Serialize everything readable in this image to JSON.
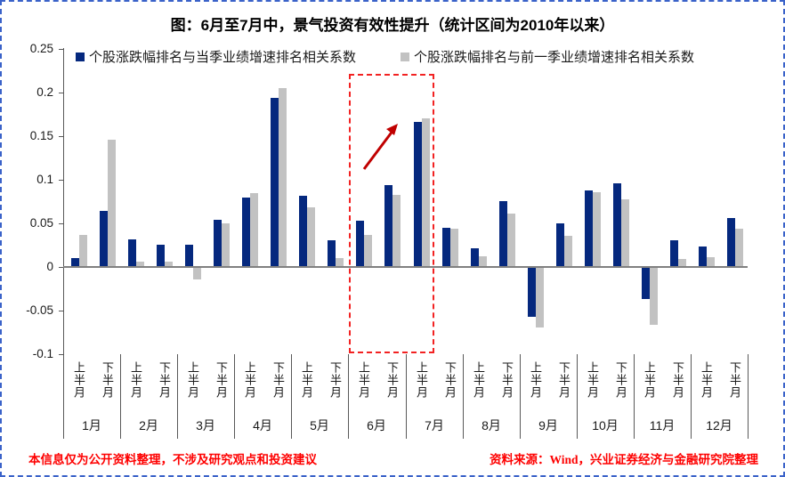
{
  "title": "图：6月至7月中，景气投资有效性提升（统计区间为2010年以来）",
  "legend": [
    {
      "label": "个股涨跌幅排名与当季业绩增速排名相关系数",
      "color": "#05287E"
    },
    {
      "label": "个股涨跌幅排名与前一季业绩增速排名相关系数",
      "color": "#C2C2C2"
    }
  ],
  "footer": {
    "left": "本信息仅为公开资料整理，不涉及研究观点和投资建议",
    "right": "资料来源：Wind，兴业证券经济与金融研究院整理"
  },
  "chart_data": {
    "type": "bar",
    "title": "图：6月至7月中，景气投资有效性提升（统计区间为2010年以来）",
    "months": [
      "1月",
      "2月",
      "3月",
      "4月",
      "5月",
      "6月",
      "7月",
      "8月",
      "9月",
      "10月",
      "11月",
      "12月"
    ],
    "half_labels": [
      "上半月",
      "下半月"
    ],
    "categories": [
      "1月上半月",
      "1月下半月",
      "2月上半月",
      "2月下半月",
      "3月上半月",
      "3月下半月",
      "4月上半月",
      "4月下半月",
      "5月上半月",
      "5月下半月",
      "6月上半月",
      "6月下半月",
      "7月上半月",
      "7月下半月",
      "8月上半月",
      "8月下半月",
      "9月上半月",
      "9月下半月",
      "10月上半月",
      "10月下半月",
      "11月上半月",
      "11月下半月",
      "12月上半月",
      "12月下半月"
    ],
    "series": [
      {
        "name": "个股涨跌幅排名与当季业绩增速排名相关系数",
        "color": "#05287E",
        "values": [
          0.01,
          0.064,
          0.032,
          0.026,
          0.025,
          0.054,
          0.08,
          0.194,
          0.082,
          0.031,
          0.053,
          0.094,
          0.166,
          0.045,
          0.021,
          0.076,
          -0.056,
          0.05,
          0.088,
          0.096,
          -0.036,
          0.031,
          0.023,
          0.056
        ]
      },
      {
        "name": "个股涨跌幅排名与前一季业绩增速排名相关系数",
        "color": "#C2C2C2",
        "values": [
          0.037,
          0.146,
          0.006,
          0.006,
          -0.013,
          0.05,
          0.085,
          0.205,
          0.068,
          0.01,
          0.037,
          0.083,
          0.17,
          0.044,
          0.012,
          0.061,
          -0.068,
          0.036,
          0.086,
          0.078,
          -0.065,
          0.009,
          0.011,
          0.044
        ]
      }
    ],
    "ylim": [
      -0.1,
      0.25
    ],
    "ytick_labels": [
      "0.25",
      "0.2",
      "0.15",
      "0.1",
      "0.05",
      "0",
      "-0.05",
      "-0.1"
    ],
    "yticks": [
      0.25,
      0.2,
      0.15,
      0.1,
      0.05,
      0,
      -0.05,
      -0.1
    ],
    "grid": false,
    "legend_position": "top",
    "annotations": {
      "highlight_box": {
        "from": "6月上半月",
        "to": "7月上半月",
        "style": "dashed",
        "color": "#F22222"
      },
      "arrow": {
        "direction": "up-right",
        "color": "#C00000",
        "near": "7月上半月"
      }
    }
  }
}
